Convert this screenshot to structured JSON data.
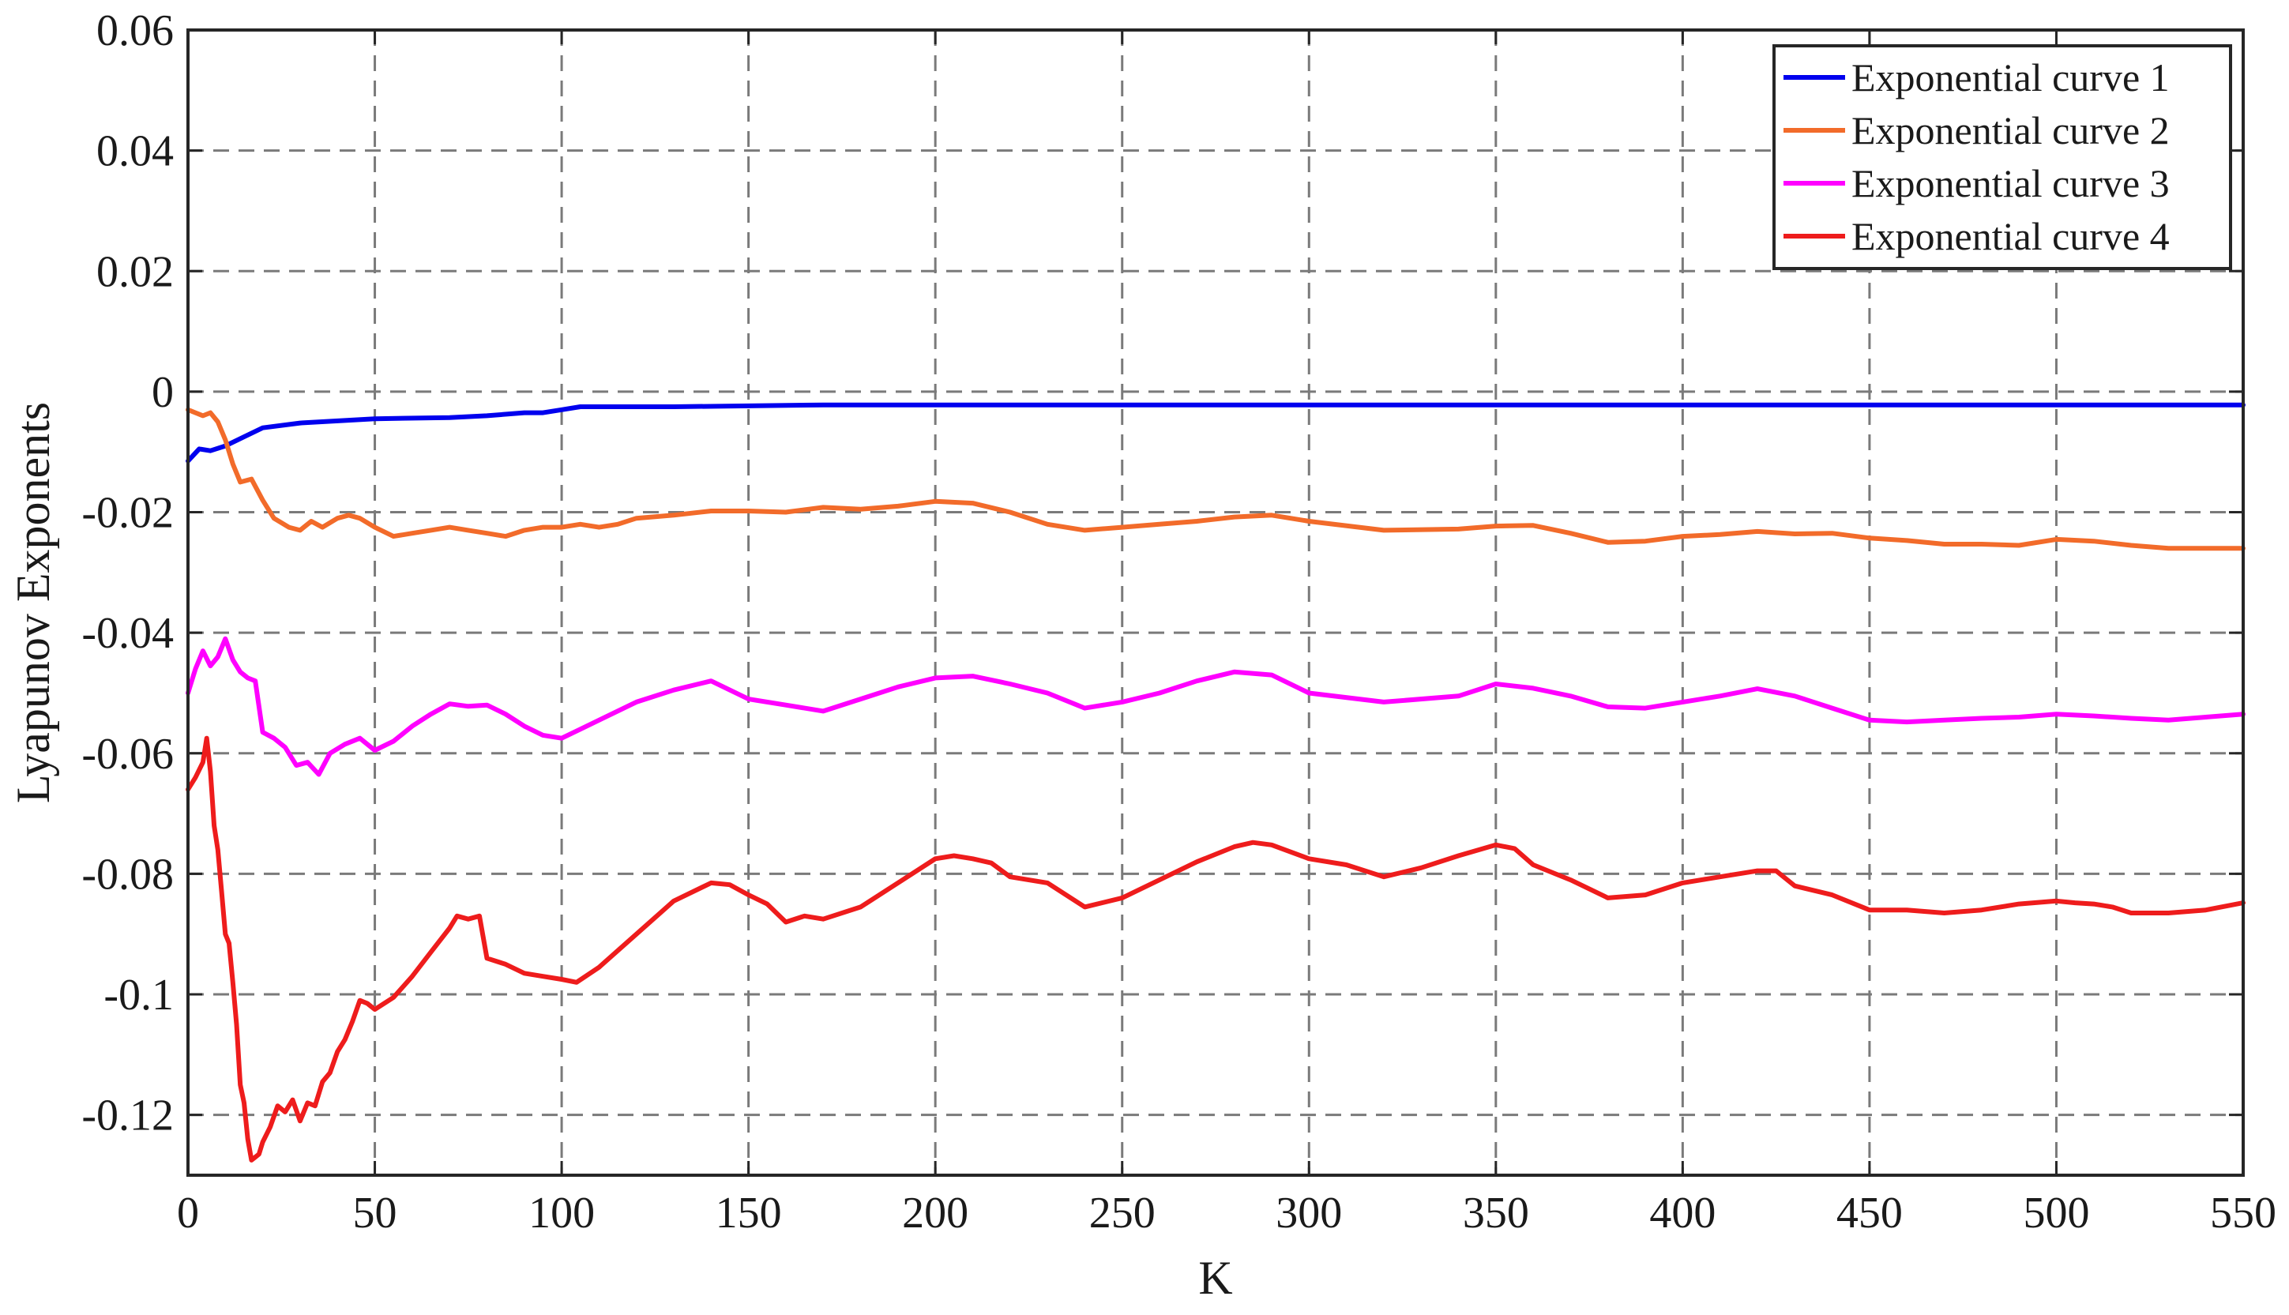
{
  "chart_data": {
    "type": "line",
    "title": "",
    "xlabel": "K",
    "ylabel": "Lyapunov Exponents",
    "xlim": [
      0,
      550
    ],
    "ylim": [
      -0.13,
      0.06
    ],
    "xticks": [
      0,
      50,
      100,
      150,
      200,
      250,
      300,
      350,
      400,
      450,
      500,
      550
    ],
    "xtick_labels": [
      "0",
      "50",
      "100",
      "150",
      "200",
      "250",
      "300",
      "350",
      "400",
      "450",
      "500",
      "550"
    ],
    "yticks": [
      0.06,
      0.04,
      0.02,
      0,
      -0.02,
      -0.04,
      -0.06,
      -0.08,
      -0.1,
      -0.12
    ],
    "ytick_labels": [
      "0.06",
      "0.04",
      "0.02",
      "0",
      "-0.02",
      "-0.04",
      "-0.06",
      "-0.08",
      "-0.1",
      "-0.12"
    ],
    "grid": true,
    "legend_position": "top-right",
    "series": [
      {
        "name": "Exponential curve 1",
        "color": "#0000ee",
        "x": [
          0,
          3,
          6,
          10,
          15,
          20,
          30,
          50,
          70,
          80,
          90,
          95,
          100,
          105,
          130,
          170,
          250,
          350,
          450,
          550
        ],
        "y": [
          -0.0115,
          -0.0095,
          -0.0098,
          -0.009,
          -0.0075,
          -0.006,
          -0.0052,
          -0.0045,
          -0.0043,
          -0.004,
          -0.0035,
          -0.0035,
          -0.003,
          -0.0025,
          -0.0025,
          -0.0022,
          -0.0022,
          -0.0022,
          -0.0022,
          -0.0022
        ]
      },
      {
        "name": "Exponential curve 2",
        "color": "#f26b2a",
        "x": [
          0,
          2,
          4,
          6,
          8,
          10,
          12,
          14,
          17,
          20,
          23,
          27,
          30,
          33,
          36,
          40,
          43,
          46,
          50,
          55,
          60,
          65,
          70,
          75,
          80,
          85,
          90,
          95,
          100,
          105,
          110,
          115,
          120,
          130,
          140,
          150,
          160,
          170,
          180,
          190,
          200,
          210,
          220,
          230,
          240,
          250,
          260,
          270,
          280,
          290,
          300,
          320,
          340,
          350,
          360,
          370,
          380,
          390,
          400,
          410,
          420,
          430,
          440,
          450,
          460,
          470,
          480,
          490,
          500,
          510,
          520,
          530,
          540,
          550
        ],
        "y": [
          -0.003,
          -0.0035,
          -0.004,
          -0.0035,
          -0.005,
          -0.008,
          -0.012,
          -0.015,
          -0.0145,
          -0.018,
          -0.021,
          -0.0225,
          -0.023,
          -0.0215,
          -0.0225,
          -0.021,
          -0.0205,
          -0.021,
          -0.0225,
          -0.024,
          -0.0235,
          -0.023,
          -0.0225,
          -0.023,
          -0.0235,
          -0.024,
          -0.023,
          -0.0225,
          -0.0225,
          -0.022,
          -0.0225,
          -0.022,
          -0.021,
          -0.0205,
          -0.0198,
          -0.0198,
          -0.02,
          -0.0192,
          -0.0195,
          -0.019,
          -0.0182,
          -0.0185,
          -0.02,
          -0.022,
          -0.023,
          -0.0225,
          -0.022,
          -0.0215,
          -0.0208,
          -0.0205,
          -0.0215,
          -0.023,
          -0.0228,
          -0.0223,
          -0.0222,
          -0.0235,
          -0.025,
          -0.0248,
          -0.024,
          -0.0237,
          -0.0232,
          -0.0236,
          -0.0235,
          -0.0243,
          -0.0247,
          -0.0253,
          -0.0253,
          -0.0255,
          -0.0245,
          -0.0248,
          -0.0255,
          -0.026,
          -0.026,
          -0.026
        ]
      },
      {
        "name": "Exponential curve 3",
        "color": "#ff00ff",
        "x": [
          0,
          2,
          4,
          6,
          8,
          10,
          12,
          14,
          16,
          18,
          20,
          23,
          26,
          29,
          32,
          35,
          38,
          42,
          46,
          50,
          55,
          60,
          65,
          70,
          75,
          80,
          85,
          90,
          95,
          100,
          105,
          110,
          120,
          130,
          140,
          150,
          160,
          170,
          180,
          190,
          200,
          210,
          220,
          230,
          240,
          250,
          260,
          270,
          280,
          290,
          300,
          320,
          340,
          350,
          360,
          370,
          380,
          390,
          400,
          410,
          420,
          430,
          440,
          450,
          460,
          470,
          480,
          490,
          500,
          510,
          520,
          530,
          540,
          550
        ],
        "y": [
          -0.05,
          -0.046,
          -0.043,
          -0.0455,
          -0.044,
          -0.041,
          -0.0445,
          -0.0465,
          -0.0475,
          -0.048,
          -0.0565,
          -0.0575,
          -0.059,
          -0.062,
          -0.0615,
          -0.0635,
          -0.06,
          -0.0585,
          -0.0575,
          -0.0595,
          -0.058,
          -0.0555,
          -0.0535,
          -0.0518,
          -0.0522,
          -0.052,
          -0.0535,
          -0.0555,
          -0.057,
          -0.0575,
          -0.056,
          -0.0545,
          -0.0515,
          -0.0495,
          -0.048,
          -0.051,
          -0.052,
          -0.053,
          -0.051,
          -0.049,
          -0.0475,
          -0.0472,
          -0.0485,
          -0.05,
          -0.0525,
          -0.0515,
          -0.05,
          -0.048,
          -0.0465,
          -0.047,
          -0.05,
          -0.0515,
          -0.0505,
          -0.0485,
          -0.0492,
          -0.0505,
          -0.0523,
          -0.0525,
          -0.0515,
          -0.0505,
          -0.0493,
          -0.0505,
          -0.0525,
          -0.0545,
          -0.0548,
          -0.0545,
          -0.0542,
          -0.054,
          -0.0535,
          -0.0538,
          -0.0542,
          -0.0545,
          -0.054,
          -0.0535
        ]
      },
      {
        "name": "Exponential curve 4",
        "color": "#ee1c1c",
        "x": [
          0,
          2,
          4,
          5,
          6,
          7,
          8,
          9,
          10,
          11,
          12,
          13,
          14,
          15,
          16,
          17,
          18,
          19,
          20,
          22,
          24,
          26,
          28,
          30,
          32,
          34,
          36,
          38,
          40,
          42,
          44,
          46,
          48,
          50,
          55,
          60,
          65,
          70,
          72,
          75,
          78,
          80,
          85,
          90,
          95,
          100,
          104,
          110,
          120,
          130,
          140,
          145,
          150,
          155,
          160,
          165,
          170,
          180,
          190,
          200,
          205,
          210,
          215,
          220,
          230,
          240,
          250,
          260,
          270,
          280,
          285,
          290,
          300,
          310,
          320,
          330,
          340,
          350,
          355,
          360,
          370,
          380,
          390,
          400,
          410,
          420,
          425,
          430,
          440,
          450,
          460,
          470,
          480,
          490,
          500,
          505,
          510,
          515,
          520,
          530,
          540,
          550
        ],
        "y": [
          -0.066,
          -0.064,
          -0.0615,
          -0.0575,
          -0.063,
          -0.072,
          -0.076,
          -0.083,
          -0.09,
          -0.0915,
          -0.098,
          -0.105,
          -0.115,
          -0.118,
          -0.124,
          -0.1275,
          -0.127,
          -0.1265,
          -0.1245,
          -0.122,
          -0.1185,
          -0.1195,
          -0.1175,
          -0.121,
          -0.118,
          -0.1185,
          -0.1145,
          -0.113,
          -0.1095,
          -0.1075,
          -0.1045,
          -0.101,
          -0.1015,
          -0.1025,
          -0.1005,
          -0.097,
          -0.093,
          -0.089,
          -0.087,
          -0.0875,
          -0.087,
          -0.094,
          -0.095,
          -0.0965,
          -0.097,
          -0.0975,
          -0.098,
          -0.0955,
          -0.09,
          -0.0845,
          -0.0815,
          -0.0818,
          -0.0835,
          -0.085,
          -0.088,
          -0.087,
          -0.0875,
          -0.0855,
          -0.0815,
          -0.0775,
          -0.077,
          -0.0775,
          -0.0782,
          -0.0805,
          -0.0815,
          -0.0855,
          -0.084,
          -0.081,
          -0.078,
          -0.0755,
          -0.0748,
          -0.0752,
          -0.0775,
          -0.0785,
          -0.0805,
          -0.079,
          -0.077,
          -0.0752,
          -0.0758,
          -0.0785,
          -0.081,
          -0.084,
          -0.0835,
          -0.0815,
          -0.0805,
          -0.0795,
          -0.0795,
          -0.082,
          -0.0835,
          -0.086,
          -0.086,
          -0.0865,
          -0.086,
          -0.085,
          -0.0845,
          -0.0848,
          -0.085,
          -0.0855,
          -0.0865,
          -0.0865,
          -0.086,
          -0.0848
        ]
      }
    ]
  }
}
